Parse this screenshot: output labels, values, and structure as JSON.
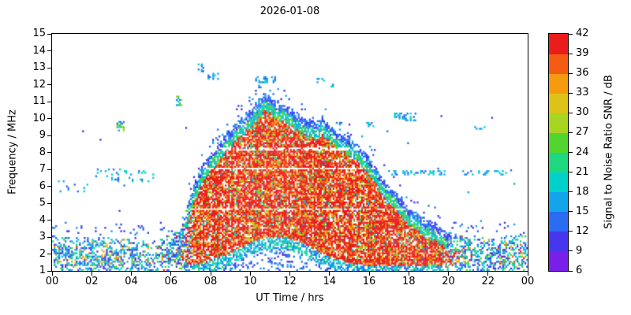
{
  "chart_data": {
    "type": "heatmap",
    "title": "2026-01-08",
    "xlabel": "UT Time / hrs",
    "ylabel": "Frequency / MHz",
    "colorbar_label": "Signal to Noise Ratio SNR / dB",
    "x_range": [
      0,
      24
    ],
    "y_range": [
      1,
      15
    ],
    "snr_range": [
      6,
      42
    ],
    "x_ticks": [
      {
        "v": 0,
        "label": "00"
      },
      {
        "v": 2,
        "label": "02"
      },
      {
        "v": 4,
        "label": "04"
      },
      {
        "v": 6,
        "label": "06"
      },
      {
        "v": 8,
        "label": "08"
      },
      {
        "v": 10,
        "label": "10"
      },
      {
        "v": 12,
        "label": "12"
      },
      {
        "v": 14,
        "label": "14"
      },
      {
        "v": 16,
        "label": "16"
      },
      {
        "v": 18,
        "label": "18"
      },
      {
        "v": 20,
        "label": "20"
      },
      {
        "v": 22,
        "label": "22"
      },
      {
        "v": 24,
        "label": "00"
      }
    ],
    "y_ticks": [
      1,
      2,
      3,
      4,
      5,
      6,
      7,
      8,
      9,
      10,
      11,
      12,
      13,
      14,
      15
    ],
    "snr_ticks": [
      6,
      9,
      12,
      15,
      18,
      21,
      24,
      27,
      30,
      33,
      36,
      39,
      42
    ],
    "colors": [
      "#7a1fe8",
      "#4636ee",
      "#2a6cf2",
      "#13a5ec",
      "#00d2cb",
      "#1dd87e",
      "#52d52e",
      "#a8d422",
      "#ddc318",
      "#f69a10",
      "#f45c14",
      "#ea1c1c"
    ],
    "envelope_max_freq": [
      [
        0,
        3.2
      ],
      [
        1,
        3.0
      ],
      [
        2,
        3.0
      ],
      [
        3,
        2.9
      ],
      [
        4,
        2.9
      ],
      [
        5,
        2.9
      ],
      [
        6,
        3.0
      ],
      [
        6.5,
        3.6
      ],
      [
        7,
        5.5
      ],
      [
        7.5,
        7.0
      ],
      [
        8,
        8.0
      ],
      [
        8.5,
        8.7
      ],
      [
        9,
        9.3
      ],
      [
        9.5,
        9.9
      ],
      [
        10,
        10.5
      ],
      [
        10.5,
        11.1
      ],
      [
        10.8,
        11.5
      ],
      [
        11,
        11.3
      ],
      [
        11.5,
        10.9
      ],
      [
        12,
        10.6
      ],
      [
        12.5,
        10.2
      ],
      [
        13,
        9.9
      ],
      [
        13.3,
        9.7
      ],
      [
        13.6,
        10.1
      ],
      [
        14,
        9.6
      ],
      [
        14.5,
        9.2
      ],
      [
        15,
        8.8
      ],
      [
        15.5,
        8.4
      ],
      [
        16,
        7.8
      ],
      [
        16.5,
        6.8
      ],
      [
        17,
        6.0
      ],
      [
        17.5,
        5.4
      ],
      [
        18,
        4.8
      ],
      [
        18.5,
        4.3
      ],
      [
        19,
        3.9
      ],
      [
        19.5,
        3.6
      ],
      [
        20,
        3.3
      ],
      [
        21,
        3.0
      ],
      [
        22,
        3.0
      ],
      [
        23,
        3.0
      ],
      [
        24,
        3.2
      ]
    ],
    "gaps_mhz": [
      4.65,
      7.05,
      8.2
    ],
    "day_window": [
      6.3,
      20.8
    ],
    "patches": [
      {
        "t": [
          3.25,
          3.6
        ],
        "f": [
          9.3,
          9.8
        ],
        "density": 0.5,
        "palette": "mixed"
      },
      {
        "t": [
          6.25,
          6.55
        ],
        "f": [
          10.8,
          11.3
        ],
        "density": 0.45,
        "palette": "mixed"
      },
      {
        "t": [
          7.35,
          7.6
        ],
        "f": [
          12.8,
          13.25
        ],
        "density": 0.4,
        "palette": "cool"
      },
      {
        "t": [
          7.85,
          8.35
        ],
        "f": [
          12.35,
          12.65
        ],
        "density": 0.4,
        "palette": "cool"
      },
      {
        "t": [
          10.25,
          11.35
        ],
        "f": [
          12.15,
          12.5
        ],
        "density": 0.45,
        "palette": "cool"
      },
      {
        "t": [
          13.35,
          13.75
        ],
        "f": [
          12.15,
          12.45
        ],
        "density": 0.4,
        "palette": "cool"
      },
      {
        "t": [
          14.05,
          14.25
        ],
        "f": [
          11.9,
          12.1
        ],
        "density": 0.3,
        "palette": "cool"
      },
      {
        "t": [
          15.85,
          16.2
        ],
        "f": [
          9.55,
          9.85
        ],
        "density": 0.45,
        "palette": "cool"
      },
      {
        "t": [
          17.25,
          18.35
        ],
        "f": [
          9.9,
          10.35
        ],
        "density": 0.35,
        "palette": "cool"
      },
      {
        "t": [
          16.8,
          19.9
        ],
        "f": [
          6.7,
          6.95
        ],
        "density": 0.3,
        "palette": "cool"
      },
      {
        "t": [
          20.7,
          22.9
        ],
        "f": [
          6.7,
          6.95
        ],
        "density": 0.28,
        "palette": "cool"
      },
      {
        "t": [
          2.1,
          5.2
        ],
        "f": [
          6.3,
          7.05
        ],
        "density": 0.12,
        "palette": "cool"
      },
      {
        "t": [
          0.3,
          1.9
        ],
        "f": [
          5.7,
          6.3
        ],
        "density": 0.1,
        "palette": "cool"
      },
      {
        "t": [
          21.3,
          22.2
        ],
        "f": [
          9.4,
          9.6
        ],
        "density": 0.12,
        "palette": "cool"
      }
    ],
    "seed": 20260108
  }
}
